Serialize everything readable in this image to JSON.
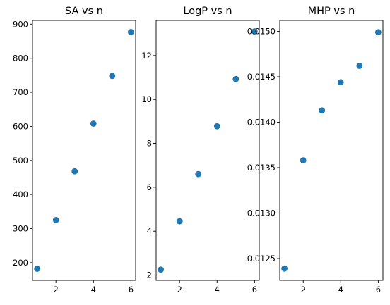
{
  "colors": {
    "marker": "#1f77b4",
    "axes": "#000000",
    "background": "#ffffff"
  },
  "chart_data": [
    {
      "type": "scatter",
      "title": "SA vs n",
      "xlabel": "",
      "ylabel": "",
      "x": [
        1,
        2,
        3,
        4,
        5,
        6
      ],
      "series": [
        {
          "values": [
            182,
            325,
            468,
            608,
            748,
            877
          ]
        }
      ],
      "xlim": [
        0.75,
        6.25
      ],
      "ylim": [
        148,
        911
      ],
      "xticks": [
        2,
        4,
        6
      ],
      "xtick_labels": [
        "2",
        "4",
        "6"
      ],
      "yticks": [
        200,
        300,
        400,
        500,
        600,
        700,
        800,
        900
      ],
      "ytick_labels": [
        "200",
        "300",
        "400",
        "500",
        "600",
        "700",
        "800",
        "900"
      ],
      "grid": false,
      "legend": "none"
    },
    {
      "type": "scatter",
      "title": "LogP vs n",
      "xlabel": "",
      "ylabel": "",
      "x": [
        1,
        2,
        3,
        4,
        5,
        6
      ],
      "series": [
        {
          "values": [
            2.25,
            4.45,
            6.6,
            8.78,
            10.93,
            13.1
          ]
        }
      ],
      "xlim": [
        0.75,
        6.25
      ],
      "ylim": [
        1.76,
        13.6
      ],
      "xticks": [
        2,
        4,
        6
      ],
      "xtick_labels": [
        "2",
        "4",
        "6"
      ],
      "yticks": [
        2,
        4,
        6,
        8,
        10,
        12
      ],
      "ytick_labels": [
        "2",
        "4",
        "6",
        "8",
        "10",
        "12"
      ],
      "grid": false,
      "legend": "none"
    },
    {
      "type": "scatter",
      "title": "MHP vs n",
      "xlabel": "",
      "ylabel": "",
      "x": [
        1,
        2,
        3,
        4,
        5,
        6
      ],
      "series": [
        {
          "values": [
            0.01239,
            0.01358,
            0.01413,
            0.01444,
            0.01462,
            0.01499
          ]
        }
      ],
      "xlim": [
        0.75,
        6.25
      ],
      "ylim": [
        0.01226,
        0.01512
      ],
      "xticks": [
        2,
        4,
        6
      ],
      "xtick_labels": [
        "2",
        "4",
        "6"
      ],
      "yticks": [
        0.0125,
        0.013,
        0.0135,
        0.014,
        0.0145,
        0.015
      ],
      "ytick_labels": [
        "0.0125",
        "0.0130",
        "0.0135",
        "0.0140",
        "0.0145",
        "0.0150"
      ],
      "grid": false,
      "legend": "none"
    }
  ]
}
